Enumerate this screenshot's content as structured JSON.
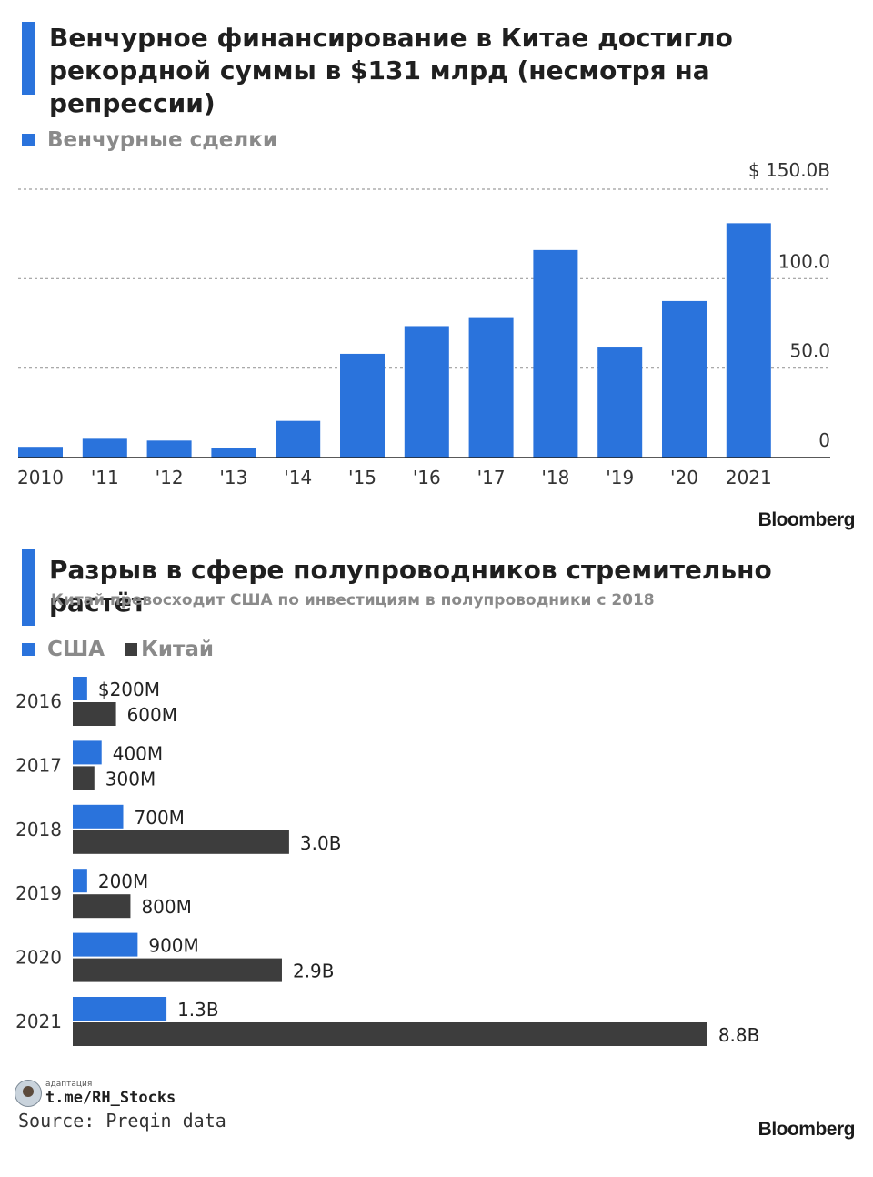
{
  "chart1": {
    "title_line1": "Венчурное финансирование в Китае достигло",
    "title_line2": "рекордной суммы в $131 млрд (несмотря на репрессии)",
    "legend_label": "Венчурные сделки",
    "source_brand": "Bloomberg"
  },
  "chart2": {
    "title": "Разрыв в сфере полупроводников стремительно растёт",
    "subtitle": "Китай превосходит США по инвестициям в полупроводники с 2018",
    "legend": [
      "США",
      "Китай"
    ],
    "source_brand": "Bloomberg"
  },
  "footer": {
    "credit_small": "адаптация",
    "credit_handle": "t.me/RH_Stocks",
    "source": "Source: Preqin data"
  },
  "colors": {
    "accent": "#2a73dc",
    "china": "#3d3d3d",
    "grid": "#9e9e9e"
  },
  "chart_data": [
    {
      "type": "bar",
      "title": "Венчурное финансирование в Китае достигло рекордной суммы в $131 млрд (несмотря на репрессии)",
      "categories": [
        "2010",
        "'11",
        "'12",
        "'13",
        "'14",
        "'15",
        "'16",
        "'17",
        "'18",
        "'19",
        "'20",
        "2021"
      ],
      "series": [
        {
          "name": "Венчурные сделки",
          "values": [
            6,
            10.5,
            9.5,
            5.5,
            20.5,
            58,
            73.5,
            78,
            116,
            61.5,
            87.5,
            131
          ]
        }
      ],
      "ylim": [
        0,
        150
      ],
      "yticks": [
        0,
        50,
        100,
        150
      ],
      "ytick_labels": [
        "0",
        "50.0",
        "100.0",
        "$ 150.0B"
      ],
      "grid": true,
      "legend_position": "top-left"
    },
    {
      "type": "bar",
      "orientation": "horizontal",
      "title": "Разрыв в сфере полупроводников стремительно растёт",
      "subtitle": "Китай превосходит США по инвестициям в полупроводники с 2018",
      "categories": [
        "2016",
        "2017",
        "2018",
        "2019",
        "2020",
        "2021"
      ],
      "series": [
        {
          "name": "США",
          "values": [
            0.2,
            0.4,
            0.7,
            0.2,
            0.9,
            1.3
          ],
          "labels": [
            "$200M",
            "400M",
            "700M",
            "200M",
            "900M",
            "1.3B"
          ]
        },
        {
          "name": "Китай",
          "values": [
            0.6,
            0.3,
            3.0,
            0.8,
            2.9,
            8.8
          ],
          "labels": [
            "600M",
            "300M",
            "3.0B",
            "800M",
            "2.9B",
            "8.8B"
          ]
        }
      ],
      "unit": "B",
      "legend_position": "top-left"
    }
  ]
}
